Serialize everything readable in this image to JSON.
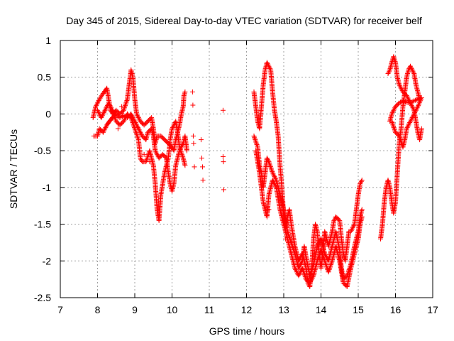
{
  "chart_data": {
    "type": "scatter",
    "title": "Day 345 of 2015, Sidereal Day-to-day VTEC variation (SDTVAR) for receiver belf",
    "xlabel": "GPS time / hours",
    "ylabel": "SDTVAR / TECUs",
    "xlim": [
      7,
      17
    ],
    "ylim": [
      -2.5,
      1
    ],
    "xticks": [
      "7",
      "8",
      "9",
      "10",
      "11",
      "12",
      "13",
      "14",
      "15",
      "16",
      "17"
    ],
    "yticks": [
      "1",
      "0.5",
      "0",
      "-0.5",
      "-1",
      "-1.5",
      "-2",
      "-2.5"
    ],
    "grid": true,
    "marker": "+",
    "color": "#ff0000",
    "series": [
      {
        "name": "SDTVAR",
        "path": [
          [
            7.88,
            -0.05
          ],
          [
            7.95,
            0.1
          ],
          [
            8.05,
            0.2
          ],
          [
            8.15,
            0.28
          ],
          [
            8.25,
            0.35
          ],
          [
            8.3,
            0.2
          ],
          [
            8.35,
            0.05
          ],
          [
            8.42,
            0.0
          ],
          [
            8.5,
            0.05
          ],
          [
            8.6,
            0.0
          ],
          [
            8.7,
            0.05
          ],
          [
            8.8,
            0.2
          ],
          [
            8.85,
            0.4
          ],
          [
            8.9,
            0.6
          ],
          [
            8.95,
            0.5
          ],
          [
            9.0,
            0.2
          ],
          [
            9.05,
            0.0
          ],
          [
            9.15,
            -0.1
          ],
          [
            9.25,
            -0.15
          ],
          [
            9.35,
            -0.1
          ],
          [
            9.45,
            -0.05
          ],
          [
            9.5,
            -0.2
          ],
          [
            9.55,
            -0.4
          ],
          [
            9.6,
            -0.3
          ],
          [
            9.7,
            -0.3
          ],
          [
            9.8,
            -0.35
          ],
          [
            9.9,
            -0.4
          ],
          [
            10.0,
            -0.45
          ],
          [
            10.05,
            -0.5
          ],
          [
            10.1,
            -0.35
          ],
          [
            10.15,
            -0.25
          ],
          [
            10.2,
            -0.15
          ],
          [
            10.25,
            0.0
          ],
          [
            10.3,
            0.1
          ],
          [
            10.32,
            0.25
          ],
          [
            10.35,
            0.3
          ]
        ]
      },
      {
        "name": "SDTVAR",
        "path": [
          [
            7.9,
            -0.3
          ],
          [
            8.0,
            -0.3
          ],
          [
            8.05,
            -0.2
          ],
          [
            8.15,
            -0.25
          ],
          [
            8.25,
            -0.15
          ],
          [
            8.32,
            -0.1
          ],
          [
            8.4,
            -0.05
          ],
          [
            8.5,
            0.0
          ],
          [
            8.6,
            -0.05
          ],
          [
            8.7,
            -0.02
          ],
          [
            8.8,
            -0.05
          ],
          [
            8.9,
            0.0
          ],
          [
            9.0,
            -0.1
          ],
          [
            9.1,
            -0.2
          ],
          [
            9.2,
            -0.3
          ],
          [
            9.3,
            -0.35
          ],
          [
            9.35,
            -0.25
          ],
          [
            9.45,
            -0.2
          ],
          [
            9.5,
            -0.3
          ],
          [
            9.55,
            -0.5
          ],
          [
            9.6,
            -0.55
          ],
          [
            9.65,
            -0.6
          ],
          [
            9.75,
            -0.55
          ],
          [
            9.85,
            -0.6
          ],
          [
            9.9,
            -0.8
          ],
          [
            9.95,
            -0.95
          ],
          [
            10.0,
            -1.05
          ],
          [
            10.05,
            -0.95
          ],
          [
            10.1,
            -0.7
          ],
          [
            10.2,
            -0.5
          ],
          [
            10.3,
            -0.4
          ],
          [
            10.35,
            -0.3
          ],
          [
            10.4,
            -0.5
          ]
        ]
      },
      {
        "name": "SDTVAR",
        "path": [
          [
            8.0,
            0.05
          ],
          [
            8.1,
            -0.05
          ],
          [
            8.2,
            0.05
          ],
          [
            8.3,
            0.15
          ],
          [
            8.4,
            0.05
          ],
          [
            8.5,
            -0.1
          ],
          [
            8.6,
            -0.15
          ],
          [
            8.7,
            -0.1
          ],
          [
            8.8,
            0.0
          ],
          [
            8.9,
            -0.05
          ],
          [
            9.0,
            -0.2
          ],
          [
            9.1,
            -0.35
          ],
          [
            9.15,
            -0.6
          ],
          [
            9.2,
            -0.65
          ],
          [
            9.3,
            -0.65
          ],
          [
            9.4,
            -0.5
          ],
          [
            9.5,
            -0.7
          ],
          [
            9.55,
            -0.95
          ],
          [
            9.6,
            -1.3
          ],
          [
            9.65,
            -1.45
          ],
          [
            9.7,
            -1.1
          ],
          [
            9.8,
            -0.8
          ],
          [
            9.9,
            -0.6
          ],
          [
            9.95,
            -0.35
          ],
          [
            10.0,
            -0.2
          ],
          [
            10.1,
            -0.1
          ],
          [
            10.15,
            -0.25
          ],
          [
            10.2,
            -0.45
          ],
          [
            10.3,
            -0.6
          ],
          [
            10.35,
            -0.7
          ]
        ]
      },
      {
        "name": "SDTVAR",
        "path": [
          [
            12.2,
            0.3
          ],
          [
            12.25,
            0.1
          ],
          [
            12.3,
            -0.1
          ],
          [
            12.35,
            -0.2
          ],
          [
            12.4,
            0.1
          ],
          [
            12.45,
            0.4
          ],
          [
            12.5,
            0.6
          ],
          [
            12.55,
            0.7
          ],
          [
            12.6,
            0.65
          ],
          [
            12.65,
            0.6
          ],
          [
            12.7,
            0.3
          ],
          [
            12.75,
            0.05
          ],
          [
            12.8,
            -0.1
          ],
          [
            12.85,
            -0.3
          ],
          [
            12.9,
            -0.7
          ],
          [
            12.95,
            -1.0
          ],
          [
            13.0,
            -1.4
          ],
          [
            13.05,
            -1.55
          ],
          [
            13.1,
            -1.4
          ],
          [
            13.15,
            -1.3
          ],
          [
            13.2,
            -1.5
          ],
          [
            13.3,
            -1.8
          ],
          [
            13.4,
            -2.0
          ],
          [
            13.5,
            -1.9
          ],
          [
            13.6,
            -2.1
          ],
          [
            13.65,
            -2.3
          ],
          [
            13.7,
            -2.35
          ],
          [
            13.75,
            -2.1
          ],
          [
            13.8,
            -1.7
          ],
          [
            13.85,
            -1.5
          ],
          [
            13.9,
            -1.6
          ],
          [
            13.95,
            -1.9
          ],
          [
            14.0,
            -2.1
          ],
          [
            14.05,
            -1.9
          ],
          [
            14.1,
            -1.6
          ],
          [
            14.2,
            -1.8
          ],
          [
            14.3,
            -1.6
          ],
          [
            14.35,
            -1.45
          ],
          [
            14.4,
            -1.4
          ],
          [
            14.5,
            -1.45
          ],
          [
            14.55,
            -1.7
          ],
          [
            14.6,
            -1.9
          ],
          [
            14.65,
            -2.0
          ],
          [
            14.7,
            -1.8
          ],
          [
            14.75,
            -1.6
          ],
          [
            14.8,
            -1.6
          ],
          [
            14.9,
            -1.5
          ],
          [
            14.95,
            -1.3
          ],
          [
            15.0,
            -1.1
          ],
          [
            15.05,
            -0.95
          ],
          [
            15.1,
            -0.9
          ]
        ]
      },
      {
        "name": "SDTVAR",
        "path": [
          [
            12.2,
            -0.3
          ],
          [
            12.3,
            -0.45
          ],
          [
            12.35,
            -0.7
          ],
          [
            12.4,
            -0.8
          ],
          [
            12.45,
            -1.0
          ],
          [
            12.5,
            -0.8
          ],
          [
            12.55,
            -0.6
          ],
          [
            12.6,
            -0.65
          ],
          [
            12.7,
            -0.8
          ],
          [
            12.8,
            -0.9
          ],
          [
            12.9,
            -1.1
          ],
          [
            13.0,
            -1.3
          ],
          [
            13.1,
            -1.6
          ],
          [
            13.2,
            -1.75
          ],
          [
            13.3,
            -1.9
          ],
          [
            13.4,
            -2.1
          ],
          [
            13.5,
            -2.0
          ],
          [
            13.55,
            -1.8
          ],
          [
            13.6,
            -1.95
          ],
          [
            13.7,
            -2.2
          ],
          [
            13.8,
            -2.05
          ],
          [
            13.9,
            -1.8
          ],
          [
            14.0,
            -1.7
          ],
          [
            14.1,
            -1.9
          ],
          [
            14.2,
            -2.0
          ],
          [
            14.3,
            -1.8
          ],
          [
            14.4,
            -1.6
          ],
          [
            14.5,
            -1.85
          ],
          [
            14.55,
            -2.1
          ],
          [
            14.6,
            -2.25
          ],
          [
            14.7,
            -2.2
          ],
          [
            14.8,
            -2.05
          ],
          [
            14.9,
            -1.8
          ],
          [
            15.0,
            -1.6
          ],
          [
            15.05,
            -1.4
          ],
          [
            15.1,
            -1.3
          ]
        ]
      },
      {
        "name": "SDTVAR",
        "path": [
          [
            12.25,
            -0.5
          ],
          [
            12.35,
            -0.8
          ],
          [
            12.45,
            -1.2
          ],
          [
            12.55,
            -1.4
          ],
          [
            12.6,
            -1.1
          ],
          [
            12.7,
            -0.9
          ],
          [
            12.8,
            -1.0
          ],
          [
            12.9,
            -1.3
          ],
          [
            13.0,
            -1.5
          ],
          [
            13.1,
            -1.7
          ],
          [
            13.2,
            -1.9
          ],
          [
            13.3,
            -2.1
          ],
          [
            13.4,
            -2.2
          ],
          [
            13.5,
            -2.1
          ],
          [
            13.6,
            -2.25
          ],
          [
            13.7,
            -2.3
          ],
          [
            13.8,
            -2.2
          ],
          [
            13.9,
            -2.0
          ],
          [
            14.0,
            -1.85
          ],
          [
            14.1,
            -2.0
          ],
          [
            14.2,
            -2.15
          ],
          [
            14.3,
            -2.0
          ],
          [
            14.4,
            -1.8
          ],
          [
            14.5,
            -2.0
          ],
          [
            14.6,
            -2.3
          ],
          [
            14.7,
            -2.35
          ],
          [
            14.8,
            -2.1
          ],
          [
            14.9,
            -1.9
          ],
          [
            15.0,
            -1.7
          ],
          [
            15.05,
            -1.5
          ],
          [
            15.1,
            -1.4
          ]
        ]
      },
      {
        "name": "SDTVAR",
        "path": [
          [
            15.6,
            -1.7
          ],
          [
            15.65,
            -1.5
          ],
          [
            15.7,
            -1.2
          ],
          [
            15.75,
            -1.0
          ],
          [
            15.8,
            -0.9
          ],
          [
            15.85,
            -1.0
          ],
          [
            15.9,
            -1.2
          ],
          [
            15.95,
            -1.35
          ],
          [
            16.0,
            -1.2
          ],
          [
            16.05,
            -0.8
          ],
          [
            16.1,
            -0.4
          ],
          [
            16.15,
            -0.2
          ],
          [
            16.2,
            0.1
          ],
          [
            16.25,
            0.3
          ],
          [
            16.3,
            0.5
          ],
          [
            16.35,
            0.6
          ],
          [
            16.4,
            0.65
          ],
          [
            16.45,
            0.6
          ],
          [
            16.5,
            0.55
          ],
          [
            16.55,
            0.4
          ],
          [
            16.6,
            0.3
          ],
          [
            16.65,
            0.2
          ]
        ]
      },
      {
        "name": "SDTVAR",
        "path": [
          [
            15.8,
            0.55
          ],
          [
            15.85,
            0.6
          ],
          [
            15.9,
            0.7
          ],
          [
            15.95,
            0.78
          ],
          [
            16.0,
            0.7
          ],
          [
            16.05,
            0.5
          ],
          [
            16.1,
            0.4
          ],
          [
            16.2,
            0.3
          ],
          [
            16.3,
            0.25
          ],
          [
            16.4,
            0.15
          ],
          [
            16.5,
            0.05
          ],
          [
            16.55,
            -0.1
          ],
          [
            16.6,
            -0.25
          ],
          [
            16.65,
            -0.35
          ],
          [
            16.7,
            -0.2
          ]
        ]
      },
      {
        "name": "SDTVAR",
        "path": [
          [
            15.85,
            -0.1
          ],
          [
            15.9,
            0.0
          ],
          [
            16.0,
            0.1
          ],
          [
            16.1,
            0.15
          ],
          [
            16.2,
            0.18
          ],
          [
            16.3,
            0.16
          ],
          [
            16.4,
            0.15
          ],
          [
            16.5,
            0.18
          ],
          [
            16.6,
            0.2
          ],
          [
            16.7,
            0.22
          ],
          [
            16.6,
            0.1
          ],
          [
            16.5,
            0.0
          ],
          [
            16.4,
            -0.1
          ],
          [
            16.3,
            -0.2
          ],
          [
            16.25,
            -0.35
          ],
          [
            16.2,
            -0.45
          ],
          [
            16.1,
            -0.3
          ],
          [
            16.0,
            -0.25
          ],
          [
            15.9,
            -0.1
          ]
        ]
      }
    ],
    "scatter": [
      [
        10.55,
        0.3
      ],
      [
        10.56,
        0.12
      ],
      [
        10.57,
        -0.3
      ],
      [
        10.58,
        -0.4
      ],
      [
        10.6,
        -0.72
      ],
      [
        10.78,
        -0.35
      ],
      [
        10.8,
        -0.6
      ],
      [
        10.82,
        -0.72
      ],
      [
        10.83,
        -0.9
      ],
      [
        11.37,
        0.05
      ],
      [
        11.37,
        -0.58
      ],
      [
        11.38,
        -0.65
      ],
      [
        11.39,
        -1.03
      ],
      [
        8.55,
        -0.2
      ],
      [
        8.65,
        0.1
      ],
      [
        9.25,
        -0.55
      ],
      [
        9.4,
        -0.65
      ],
      [
        12.6,
        -1.3
      ],
      [
        13.05,
        -1.7
      ]
    ]
  }
}
